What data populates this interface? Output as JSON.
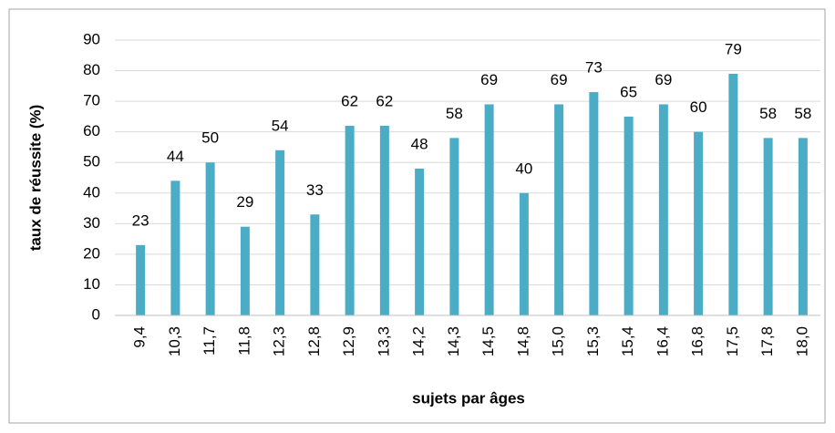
{
  "chart_data": {
    "type": "bar",
    "categories": [
      "9,4",
      "10,3",
      "11,7",
      "11,8",
      "12,3",
      "12,8",
      "12,9",
      "13,3",
      "14,2",
      "14,3",
      "14,5",
      "14,8",
      "15,0",
      "15,3",
      "15,4",
      "16,4",
      "16,8",
      "17,5",
      "17,8",
      "18,0"
    ],
    "values": [
      23,
      44,
      50,
      29,
      54,
      33,
      62,
      62,
      48,
      58,
      69,
      40,
      69,
      73,
      65,
      69,
      60,
      79,
      58,
      58
    ],
    "color": "#4bacc6",
    "ylim": [
      0,
      90
    ],
    "yticks": [
      0,
      10,
      20,
      30,
      40,
      50,
      60,
      70,
      80,
      90
    ],
    "grid": true,
    "y_label": "taux de réussite (%)",
    "x_label": "sujets par âges"
  }
}
